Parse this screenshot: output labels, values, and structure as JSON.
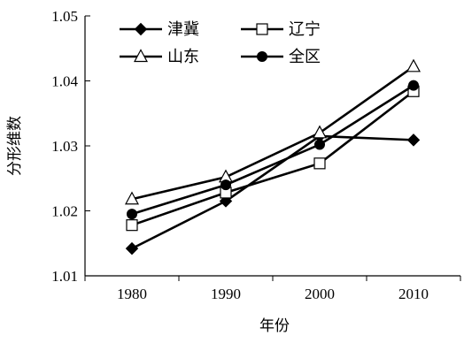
{
  "chart_data": {
    "type": "line",
    "xlabel": "年份",
    "ylabel": "分形维数",
    "x": [
      1980,
      1990,
      2000,
      2010
    ],
    "x_tick_labels": [
      "1980",
      "1990",
      "2000",
      "2010"
    ],
    "y_tick_labels": [
      "1.01",
      "1.02",
      "1.03",
      "1.04",
      "1.05"
    ],
    "ylim": [
      1.01,
      1.05
    ],
    "yticks": [
      1.01,
      1.02,
      1.03,
      1.04,
      1.05
    ],
    "grid": false,
    "legend": "top-left, two columns",
    "series": [
      {
        "name": "津冀",
        "marker": "diamond-filled",
        "values": [
          1.0142,
          1.0215,
          1.0315,
          1.0309
        ]
      },
      {
        "name": "辽宁",
        "marker": "square-open",
        "values": [
          1.0178,
          1.0228,
          1.0273,
          1.0384
        ]
      },
      {
        "name": "山东",
        "marker": "triangle-open",
        "values": [
          1.0218,
          1.0252,
          1.032,
          1.0422
        ]
      },
      {
        "name": "全区",
        "marker": "circle-filled",
        "values": [
          1.0195,
          1.024,
          1.0302,
          1.0393
        ]
      }
    ],
    "colors": {
      "line": "#000000",
      "background": "#ffffff"
    }
  }
}
